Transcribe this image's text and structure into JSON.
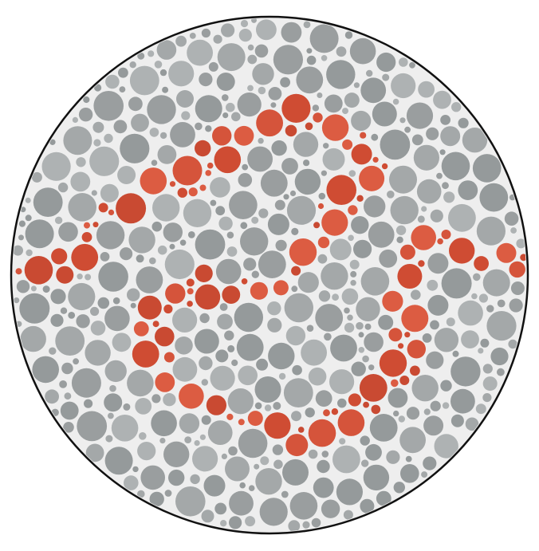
{
  "plate": {
    "kind": "pseudoisochromatic color-vision test plate",
    "background_color": "#ffffff",
    "disc_fill": "#eeeeee",
    "border_color": "#111111",
    "dot_colors": {
      "background_dots": [
        "#9a9e9f",
        "#a4a8a9",
        "#959a9b",
        "#aeb2b3"
      ],
      "figure_dots": [
        "#d5543b",
        "#cf4c33",
        "#dc5c42",
        "#c94a32"
      ]
    },
    "figure_shape": "continuous winding line (trail)"
  }
}
